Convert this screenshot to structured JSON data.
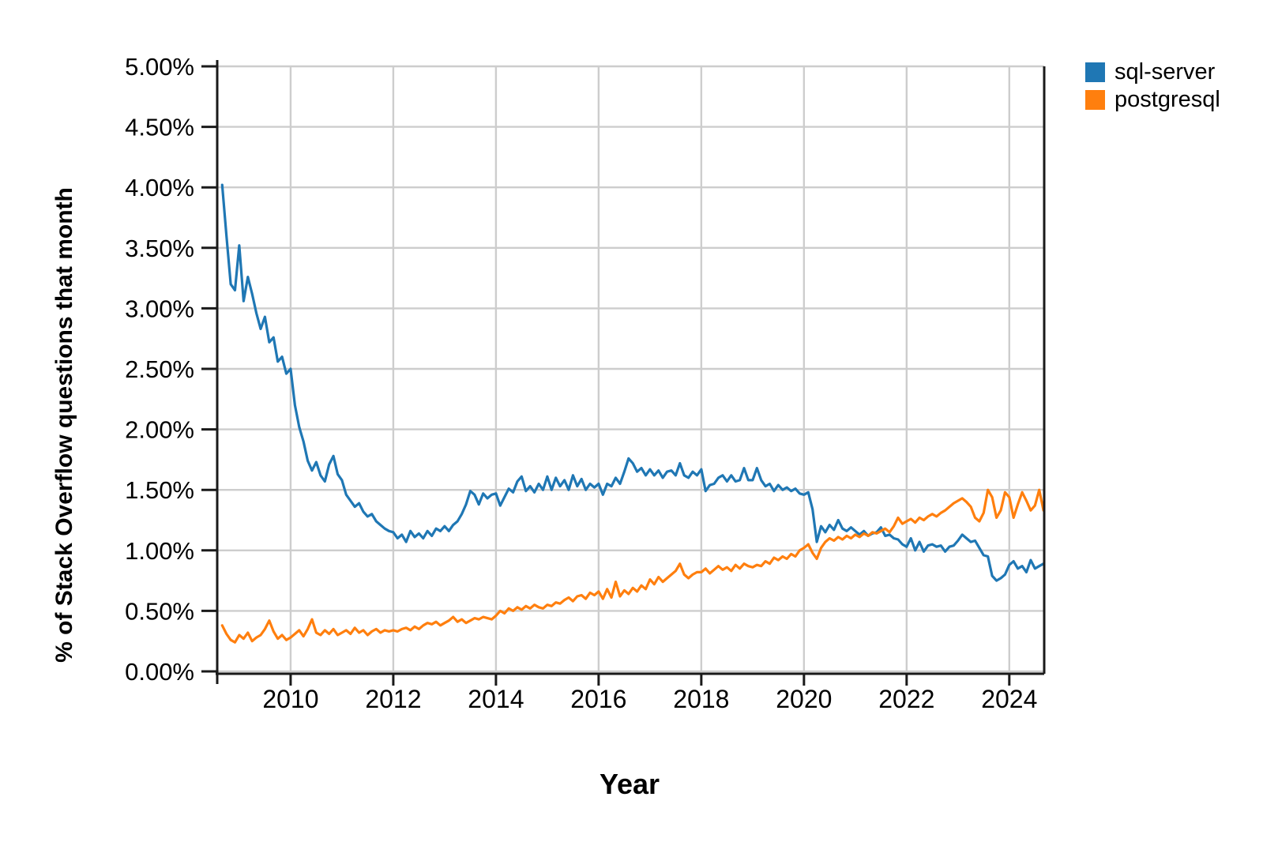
{
  "figure": {
    "y_axis_title": "% of Stack Overflow questions that month",
    "x_axis_title": "Year",
    "legend": [
      {
        "label": "sql-server",
        "color": "#1f77b4"
      },
      {
        "label": "postgresql",
        "color": "#ff7f0e"
      }
    ]
  },
  "chart_data": {
    "type": "line",
    "title": "",
    "xlabel": "Year",
    "ylabel": "% of Stack Overflow questions that month",
    "grid": true,
    "grid_color": "#cdcdcd",
    "axis_color": "#1a1a1a",
    "legend_position": "top-right",
    "x_unit": "decimal_year_monthly",
    "x_start": 2008.6667,
    "x_step": 0.083333,
    "xlim": [
      2008.57,
      2024.68
    ],
    "ylim": [
      0,
      5
    ],
    "x_ticks": [
      2010,
      2012,
      2014,
      2016,
      2018,
      2020,
      2022,
      2024
    ],
    "y_tick_values": [
      0,
      0.5,
      1,
      1.5,
      2,
      2.5,
      3,
      3.5,
      4,
      4.5,
      5
    ],
    "y_tick_labels": [
      "0.00%",
      "0.50%",
      "1.00%",
      "1.50%",
      "2.00%",
      "2.50%",
      "3.00%",
      "3.50%",
      "4.00%",
      "4.50%",
      "5.00%"
    ],
    "series": [
      {
        "name": "sql-server",
        "color": "#1f77b4",
        "values": [
          4.02,
          3.6,
          3.2,
          3.15,
          3.52,
          3.06,
          3.26,
          3.12,
          2.96,
          2.83,
          2.93,
          2.72,
          2.76,
          2.56,
          2.6,
          2.46,
          2.5,
          2.2,
          2.02,
          1.9,
          1.74,
          1.66,
          1.73,
          1.62,
          1.57,
          1.71,
          1.78,
          1.63,
          1.58,
          1.46,
          1.41,
          1.36,
          1.39,
          1.32,
          1.28,
          1.3,
          1.24,
          1.21,
          1.18,
          1.16,
          1.15,
          1.1,
          1.13,
          1.07,
          1.16,
          1.11,
          1.14,
          1.1,
          1.16,
          1.12,
          1.18,
          1.16,
          1.2,
          1.16,
          1.21,
          1.24,
          1.3,
          1.38,
          1.49,
          1.46,
          1.38,
          1.47,
          1.43,
          1.46,
          1.47,
          1.37,
          1.44,
          1.51,
          1.48,
          1.57,
          1.61,
          1.49,
          1.53,
          1.48,
          1.55,
          1.5,
          1.61,
          1.5,
          1.6,
          1.53,
          1.58,
          1.5,
          1.62,
          1.53,
          1.59,
          1.5,
          1.55,
          1.52,
          1.55,
          1.46,
          1.55,
          1.53,
          1.6,
          1.55,
          1.65,
          1.76,
          1.72,
          1.65,
          1.68,
          1.62,
          1.67,
          1.62,
          1.66,
          1.6,
          1.65,
          1.66,
          1.62,
          1.72,
          1.62,
          1.6,
          1.65,
          1.62,
          1.67,
          1.49,
          1.54,
          1.55,
          1.6,
          1.62,
          1.57,
          1.62,
          1.57,
          1.58,
          1.68,
          1.58,
          1.58,
          1.68,
          1.58,
          1.53,
          1.55,
          1.49,
          1.54,
          1.5,
          1.52,
          1.49,
          1.51,
          1.47,
          1.46,
          1.48,
          1.34,
          1.07,
          1.2,
          1.15,
          1.21,
          1.17,
          1.25,
          1.18,
          1.16,
          1.19,
          1.16,
          1.13,
          1.16,
          1.12,
          1.14,
          1.15,
          1.19,
          1.12,
          1.13,
          1.1,
          1.09,
          1.05,
          1.03,
          1.1,
          1.0,
          1.07,
          0.99,
          1.04,
          1.05,
          1.03,
          1.04,
          0.99,
          1.03,
          1.04,
          1.08,
          1.13,
          1.1,
          1.07,
          1.08,
          1.02,
          0.96,
          0.95,
          0.79,
          0.75,
          0.77,
          0.8,
          0.88,
          0.91,
          0.85,
          0.87,
          0.82,
          0.92,
          0.85,
          0.87,
          0.89
        ]
      },
      {
        "name": "postgresql",
        "color": "#ff7f0e",
        "values": [
          0.38,
          0.31,
          0.26,
          0.24,
          0.3,
          0.27,
          0.32,
          0.25,
          0.28,
          0.3,
          0.35,
          0.42,
          0.33,
          0.27,
          0.3,
          0.26,
          0.28,
          0.31,
          0.34,
          0.29,
          0.35,
          0.43,
          0.32,
          0.3,
          0.34,
          0.31,
          0.35,
          0.3,
          0.32,
          0.34,
          0.31,
          0.36,
          0.32,
          0.34,
          0.3,
          0.33,
          0.35,
          0.32,
          0.34,
          0.33,
          0.34,
          0.33,
          0.35,
          0.36,
          0.34,
          0.37,
          0.35,
          0.38,
          0.4,
          0.39,
          0.41,
          0.38,
          0.4,
          0.42,
          0.45,
          0.41,
          0.43,
          0.4,
          0.42,
          0.44,
          0.43,
          0.45,
          0.44,
          0.43,
          0.46,
          0.5,
          0.48,
          0.52,
          0.5,
          0.53,
          0.51,
          0.54,
          0.52,
          0.55,
          0.53,
          0.52,
          0.55,
          0.54,
          0.57,
          0.56,
          0.59,
          0.61,
          0.58,
          0.62,
          0.63,
          0.6,
          0.65,
          0.63,
          0.66,
          0.6,
          0.68,
          0.61,
          0.74,
          0.62,
          0.67,
          0.64,
          0.69,
          0.66,
          0.71,
          0.68,
          0.76,
          0.72,
          0.78,
          0.74,
          0.77,
          0.8,
          0.83,
          0.89,
          0.8,
          0.77,
          0.8,
          0.82,
          0.82,
          0.85,
          0.81,
          0.84,
          0.87,
          0.84,
          0.86,
          0.83,
          0.88,
          0.85,
          0.89,
          0.87,
          0.86,
          0.88,
          0.87,
          0.91,
          0.89,
          0.94,
          0.92,
          0.95,
          0.93,
          0.97,
          0.95,
          1.0,
          1.02,
          1.05,
          0.98,
          0.93,
          1.02,
          1.07,
          1.1,
          1.08,
          1.11,
          1.09,
          1.12,
          1.1,
          1.13,
          1.11,
          1.14,
          1.12,
          1.15,
          1.14,
          1.16,
          1.18,
          1.15,
          1.2,
          1.27,
          1.22,
          1.24,
          1.26,
          1.23,
          1.27,
          1.25,
          1.28,
          1.3,
          1.28,
          1.31,
          1.33,
          1.36,
          1.39,
          1.41,
          1.43,
          1.4,
          1.36,
          1.27,
          1.24,
          1.31,
          1.5,
          1.44,
          1.27,
          1.33,
          1.48,
          1.44,
          1.27,
          1.38,
          1.48,
          1.41,
          1.33,
          1.37,
          1.5,
          1.33
        ]
      }
    ]
  }
}
